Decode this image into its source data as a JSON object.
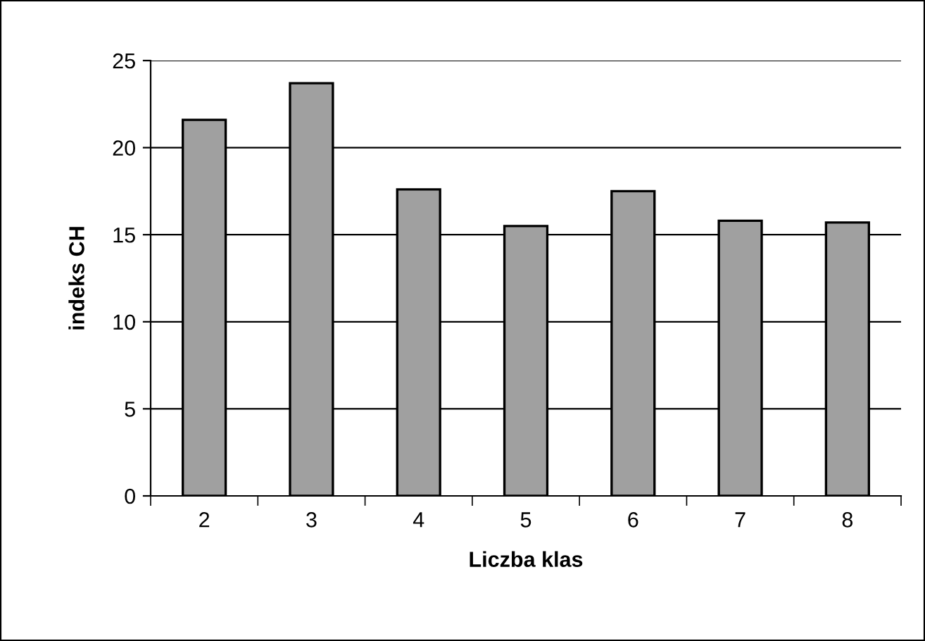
{
  "chart_data": {
    "type": "bar",
    "xlabel": "Liczba klas",
    "ylabel": "indeks CH",
    "categories": [
      "2",
      "3",
      "4",
      "5",
      "6",
      "7",
      "8"
    ],
    "values": [
      21.6,
      23.7,
      17.6,
      15.5,
      17.5,
      15.8,
      15.7
    ],
    "color": "#a0a0a0",
    "ylim": [
      0,
      25
    ],
    "yticks": [
      0,
      5,
      10,
      15,
      20,
      25
    ],
    "grid": "y",
    "legend": false
  }
}
